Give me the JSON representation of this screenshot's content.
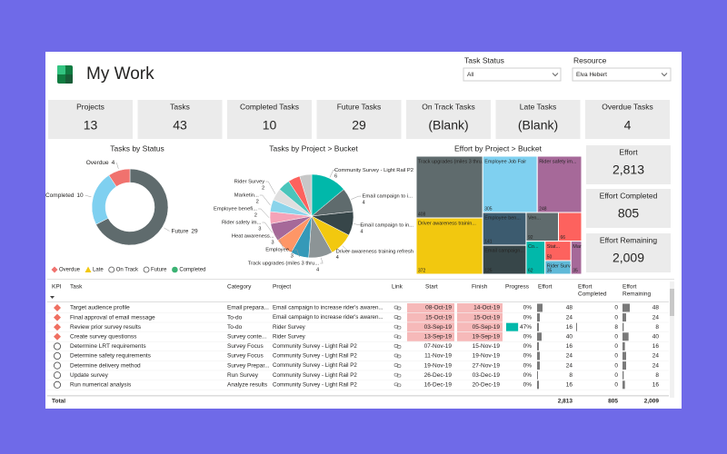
{
  "header": {
    "title": "My Work"
  },
  "filters": [
    {
      "label": "Task Status",
      "value": "All"
    },
    {
      "label": "Resource",
      "value": "Elva Hebert"
    }
  ],
  "cards": [
    {
      "label": "Projects",
      "value": 13
    },
    {
      "label": "Tasks",
      "value": 43
    },
    {
      "label": "Completed Tasks",
      "value": 10
    },
    {
      "label": "Future Tasks",
      "value": 29
    },
    {
      "label": "On Track Tasks",
      "value": "(Blank)"
    },
    {
      "label": "Late Tasks",
      "value": "(Blank)"
    },
    {
      "label": "Overdue Tasks",
      "value": 4
    }
  ],
  "status_chart": {
    "type": "donut",
    "title": "Tasks by Status",
    "categories": [
      "Future",
      "Completed",
      "Overdue"
    ],
    "values": [
      29,
      10,
      4
    ],
    "colors": [
      "#5f6b6d",
      "#7fd0f0",
      "#f0726e"
    ],
    "legend": [
      {
        "label": "Overdue",
        "color": "#f0726e",
        "shape": "diamond"
      },
      {
        "label": "Late",
        "color": "#f2c80f",
        "shape": "triangle"
      },
      {
        "label": "On Track",
        "color": "#555555",
        "shape": "circle"
      },
      {
        "label": "Future",
        "color": "#555555",
        "shape": "circle"
      },
      {
        "label": "Completed",
        "color": "#3bb273",
        "shape": "dot"
      }
    ]
  },
  "project_chart": {
    "type": "pie",
    "title": "Tasks by Project > Bucket",
    "categories": [
      "Community Survey - Light Rail P2",
      "Email campaign to i...",
      "Email campaign to in...",
      "Driver awareness training refresh",
      "Track upgrades (miles 3 thru...",
      "Employee...",
      "Heat awareness...",
      "Rider safety im...",
      "Employee benefi...",
      "Marketin...",
      "Rider Survey",
      null,
      null,
      null
    ],
    "values": [
      6,
      4,
      4,
      4,
      4,
      3,
      3,
      3,
      2,
      2,
      2,
      2,
      2,
      2
    ],
    "colors": [
      "#01b8aa",
      "#5f6b6d",
      "#374649",
      "#f2c80f",
      "#8c9496",
      "#3599b8",
      "#fe9666",
      "#a66999",
      "#f5a3b8",
      "#8ad4eb",
      "#dfdfdf",
      "#4ac5bb",
      "#fd625e",
      "#c7c7c7"
    ]
  },
  "effort_chart": {
    "type": "treemap",
    "title": "Effort by Project > Bucket",
    "categories": [
      "Track upgrades (miles 3 thru...",
      "Driver awareness trainin...",
      "Employee Job Fair",
      "Rider safety im...",
      "Employee ben...",
      "Email campaign...",
      "Ven...",
      null,
      "Co...",
      "Stat...",
      "Rider Survey",
      "Marketing..."
    ],
    "values": [
      408,
      372,
      305,
      248,
      141,
      125,
      92,
      66,
      62,
      50,
      35,
      35
    ],
    "colors": [
      "#5f6b6d",
      "#f2c80f",
      "#7fd0f0",
      "#a66999",
      "#3c5b6f",
      "#374649",
      "#5f6b6d",
      "#fd625e",
      "#01b8aa",
      "#fd625e",
      "#5fb9d8",
      "#a66999"
    ]
  },
  "effort_cards": [
    {
      "label": "Effort",
      "value": "2,813"
    },
    {
      "label": "Effort Completed",
      "value": 805
    },
    {
      "label": "Effort Remaining",
      "value": "2,009"
    }
  ],
  "table": {
    "columns": [
      "KPI",
      "Task",
      "Category",
      "Project",
      "Link",
      "Start",
      "Finish",
      "Progress",
      "Effort",
      [
        "Effort",
        "Completed"
      ],
      [
        "Effort",
        "Remaining"
      ]
    ],
    "rows": [
      {
        "kpi": "overdue",
        "task": "Target audience profile",
        "category": "Email prepara...",
        "project": "Email campaign to increase rider's awaren...",
        "start": "08-Oct-19",
        "finish": "14-Oct-19",
        "progress": 0,
        "progress_label": "0%",
        "effort": 48,
        "effort_completed": 0,
        "effort_remaining": 48
      },
      {
        "kpi": "overdue",
        "task": "Final approval of email message",
        "category": "To-do",
        "project": "Email campaign to increase rider's awaren...",
        "start": "15-Oct-19",
        "finish": "15-Oct-19",
        "progress": 0,
        "progress_label": "0%",
        "effort": 24,
        "effort_completed": 0,
        "effort_remaining": 24
      },
      {
        "kpi": "overdue",
        "task": "Review prior survey results",
        "category": "To-do",
        "project": "Rider Survey",
        "start": "03-Sep-19",
        "finish": "05-Sep-19",
        "progress": 47,
        "progress_label": "47%",
        "effort": 16,
        "effort_completed": 8,
        "effort_remaining": 8
      },
      {
        "kpi": "overdue",
        "task": "Create survey questionss",
        "category": "Survey conte...",
        "project": "Rider Survey",
        "start": "13-Sep-19",
        "finish": "19-Sep-19",
        "progress": 0,
        "progress_label": "0%",
        "effort": 40,
        "effort_completed": 0,
        "effort_remaining": 40
      },
      {
        "kpi": "future",
        "task": "Determine LRT requirements",
        "category": "Survey Focus",
        "project": "Community Survey - Light Rail P2",
        "start": "07-Nov-19",
        "finish": "15-Nov-19",
        "progress": 0,
        "progress_label": "0%",
        "effort": 16,
        "effort_completed": 0,
        "effort_remaining": 16
      },
      {
        "kpi": "future",
        "task": "Determine safety requirements",
        "category": "Survey Focus",
        "project": "Community Survey - Light Rail P2",
        "start": "11-Nov-19",
        "finish": "19-Nov-19",
        "progress": 0,
        "progress_label": "0%",
        "effort": 24,
        "effort_completed": 0,
        "effort_remaining": 24
      },
      {
        "kpi": "future",
        "task": "Determine delivery method",
        "category": "Survey Prepar...",
        "project": "Community Survey - Light Rail P2",
        "start": "19-Nov-19",
        "finish": "27-Nov-19",
        "progress": 0,
        "progress_label": "0%",
        "effort": 24,
        "effort_completed": 0,
        "effort_remaining": 24
      },
      {
        "kpi": "future",
        "task": "Update survey",
        "category": "Run Survey",
        "project": "Community Survey - Light Rail P2",
        "start": "26-Dec-19",
        "finish": "03-Dec-19",
        "progress": 0,
        "progress_label": "0%",
        "effort": 8,
        "effort_completed": 0,
        "effort_remaining": 8
      },
      {
        "kpi": "future",
        "task": "Run numerical analysis",
        "category": "Analyze results",
        "project": "Community Survey - Light Rail P2",
        "start": "16-Dec-19",
        "finish": "20-Dec-19",
        "progress": 0,
        "progress_label": "0%",
        "effort": 16,
        "effort_completed": 0,
        "effort_remaining": 16
      }
    ],
    "total": {
      "label": "Total",
      "effort": "2,813",
      "effort_completed": 805,
      "effort_remaining": "2,009"
    }
  }
}
